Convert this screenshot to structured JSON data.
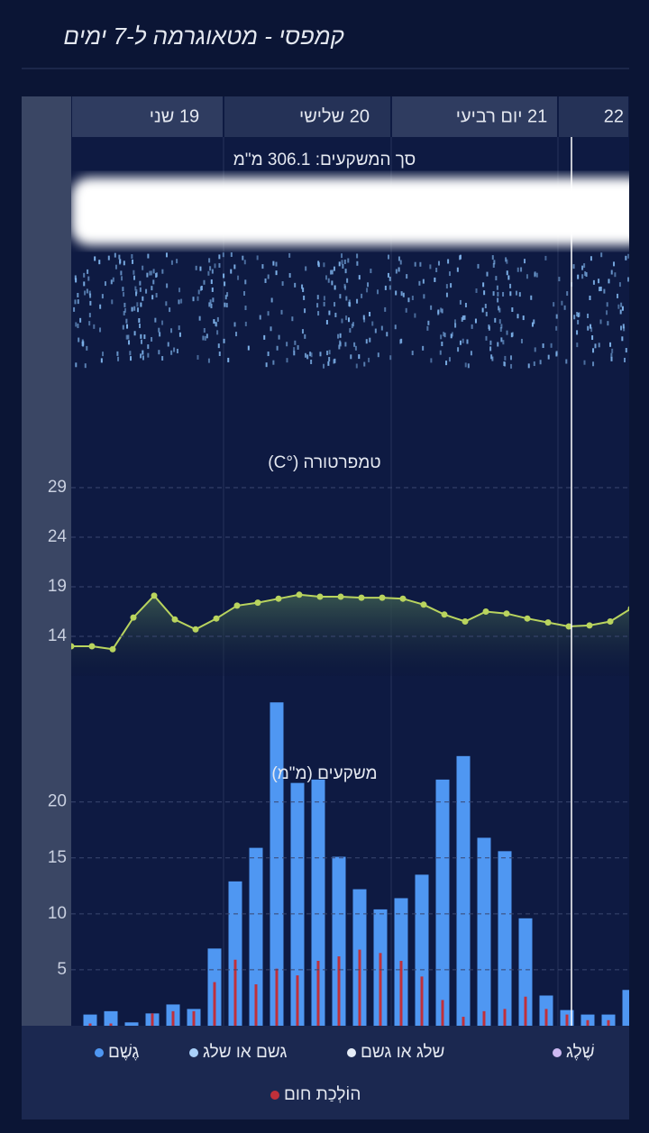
{
  "title": "קמפסי - מטאוגרמה ל-7 ימים",
  "days": [
    "19 שני",
    "20 שלישי",
    "21 יום רביעי",
    "22"
  ],
  "precip_total": "סך המשקעים: 306.1 מ\"מ",
  "chart_data": [
    {
      "type": "area-line",
      "title": "טמפרטורה (°C)",
      "color": "#b9d45e",
      "categories": [
        null,
        null,
        null,
        null,
        null,
        null,
        null,
        null,
        null,
        null,
        null,
        null,
        null,
        null,
        null,
        null,
        null,
        null,
        null,
        null,
        null,
        null,
        null,
        null,
        null,
        null,
        null,
        null
      ],
      "values": [
        13.0,
        13.0,
        12.7,
        15.9,
        18.1,
        15.7,
        14.7,
        15.8,
        17.1,
        17.4,
        17.8,
        18.2,
        18.0,
        18.0,
        17.9,
        17.9,
        17.8,
        17.2,
        16.2,
        15.5,
        16.5,
        16.3,
        15.8,
        15.4,
        15.0,
        15.1,
        15.5,
        16.8
      ],
      "ylim": [
        10,
        29
      ],
      "yticks": [
        29,
        24,
        19,
        14
      ],
      "grid": true
    },
    {
      "type": "bar",
      "title": "משקעים (מ\"מ)",
      "categories": [
        null,
        null,
        null,
        null,
        null,
        null,
        null,
        null,
        null,
        null,
        null,
        null,
        null,
        null,
        null,
        null,
        null,
        null,
        null,
        null,
        null,
        null,
        null,
        null,
        null,
        null,
        null,
        null
      ],
      "series": [
        {
          "name": "גֶשֶׁם",
          "color": "#4f97f2",
          "values": [
            null,
            1.0,
            1.3,
            0.3,
            1.1,
            1.9,
            1.5,
            6.9,
            12.9,
            15.9,
            28.9,
            21.7,
            22.0,
            15.1,
            12.2,
            10.4,
            11.4,
            13.5,
            22.0,
            24.1,
            16.8,
            15.6,
            9.6,
            2.7,
            1.4,
            1.0,
            1.0,
            3.2
          ]
        },
        {
          "name": "הוֹלְכַת חום",
          "color": "#c0303a",
          "values": [
            null,
            0.2,
            0.2,
            null,
            1.1,
            1.3,
            1.3,
            3.9,
            5.9,
            3.7,
            5.1,
            4.5,
            5.8,
            6.2,
            6.8,
            6.5,
            5.8,
            4.4,
            2.3,
            0.8,
            1.3,
            1.5,
            2.6,
            1.5,
            1.0,
            0.5,
            0.5,
            null
          ]
        }
      ],
      "legend_extra": [
        {
          "name": "גשם או שלג",
          "color": "#a9d0fa"
        },
        {
          "name": "שלג או גשם",
          "color": "#e6edf8"
        },
        {
          "name": "שֶׁלֶג",
          "color": "#cdb9f2"
        }
      ],
      "ylim": [
        0,
        29
      ],
      "yticks": [
        20,
        15,
        10,
        5
      ],
      "grid": true
    }
  ]
}
